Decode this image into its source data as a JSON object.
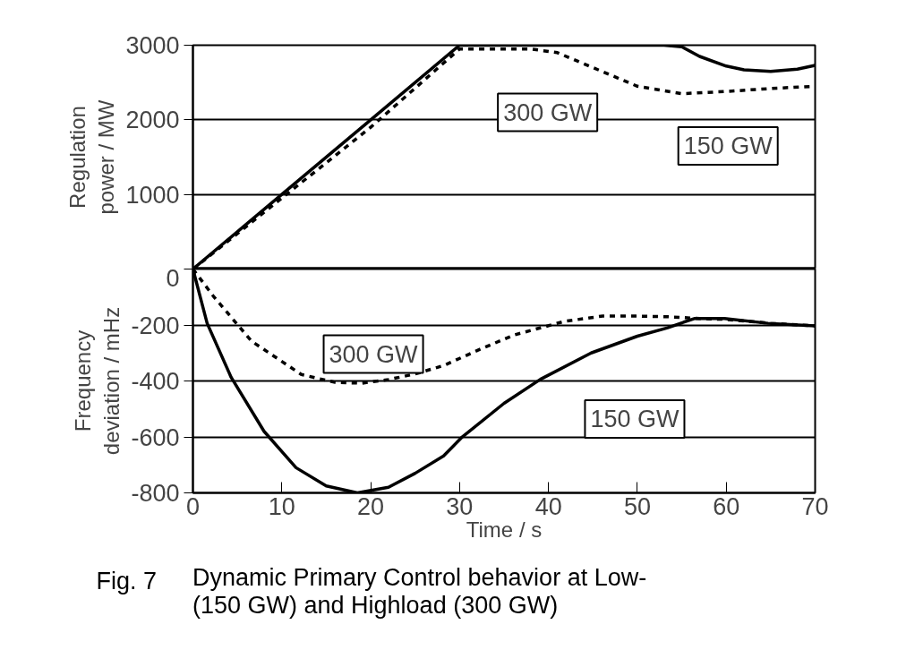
{
  "chart_data": [
    {
      "type": "line",
      "ylabel": "Regulation power / MW",
      "xlim": [
        0,
        70
      ],
      "ylim": [
        0,
        3000
      ],
      "yticks": [
        {
          "value": 0,
          "label": null
        },
        1000,
        2000,
        3000
      ],
      "grid": "y",
      "tick_labels": "y",
      "series": [
        {
          "color": "#000000",
          "line_style": "solid",
          "x": [
            0,
            10,
            20,
            30,
            35,
            40,
            45,
            50,
            53,
            55,
            57,
            60,
            62,
            65,
            68,
            70
          ],
          "values": [
            0,
            1000,
            2000,
            3000,
            3000,
            3000,
            3000,
            3000,
            3000,
            2980,
            2850,
            2720,
            2670,
            2650,
            2680,
            2730
          ]
        },
        {
          "color": "#000000",
          "line_style": "dashed",
          "x": [
            0,
            10,
            20,
            30,
            35,
            38,
            41,
            44,
            47,
            50,
            55,
            60,
            65,
            70
          ],
          "values": [
            0,
            950,
            1900,
            2950,
            2950,
            2950,
            2900,
            2750,
            2600,
            2450,
            2350,
            2380,
            2420,
            2450
          ]
        }
      ],
      "annotations": [
        "150 GW",
        "300 GW"
      ]
    },
    {
      "type": "line",
      "xlabel": "Time / s",
      "ylabel": "Frequency deviation / mHz",
      "xlim": [
        0,
        70
      ],
      "ylim": [
        -800,
        0
      ],
      "xticks": [
        0,
        10,
        20,
        30,
        40,
        50,
        60,
        70
      ],
      "yticks": [
        -800,
        -600,
        -400,
        -200,
        0
      ],
      "grid": "y",
      "series": [
        {
          "color": "#000000",
          "line_style": "solid",
          "x": [
            0,
            1.6,
            4.3,
            8,
            11.6,
            15,
            18.5,
            22,
            25,
            28.2,
            30.2,
            35,
            39.1,
            44.8,
            50,
            53.4,
            56.4,
            59.8,
            64.7,
            70
          ],
          "values": [
            0,
            -194,
            -387,
            -580,
            -710,
            -775,
            -800,
            -780,
            -730,
            -668,
            -603,
            -480,
            -394,
            -300,
            -240,
            -210,
            -177,
            -177,
            -194,
            -203
          ]
        },
        {
          "color": "#000000",
          "line_style": "dashed",
          "x": [
            0,
            2.3,
            6.6,
            12.2,
            16,
            19,
            22,
            25,
            28.2,
            32.5,
            36.2,
            41.8,
            46.1,
            50,
            53.8,
            57,
            60,
            65,
            70
          ],
          "values": [
            0,
            -97,
            -258,
            -377,
            -405,
            -408,
            -395,
            -375,
            -345,
            -284,
            -235,
            -187,
            -168,
            -168,
            -171,
            -177,
            -180,
            -194,
            -203
          ]
        }
      ],
      "annotations": [
        "300 GW",
        "150 GW",
        "Fig. 7",
        "Dynamic Primary Control behavior at Low- (150 GW) and Highload (300 GW)"
      ]
    }
  ]
}
